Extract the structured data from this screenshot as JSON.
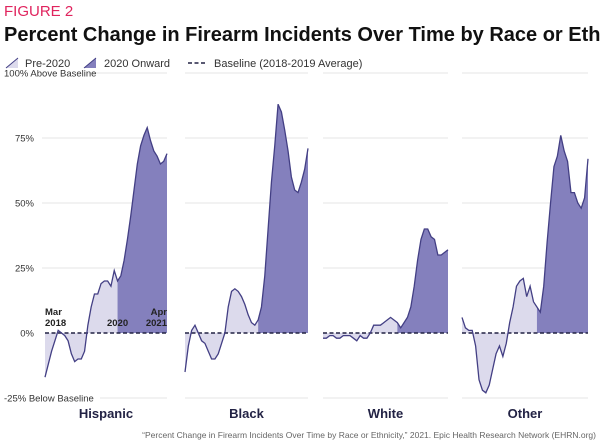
{
  "figure_label": "FIGURE 2",
  "chart_data": {
    "type": "area",
    "title": "Percent Change in Firearm Incidents Over Time by Race or Ethnicity",
    "legend": [
      {
        "label": "Pre-2020",
        "color": "#dcdaec"
      },
      {
        "label": "2020 Onward",
        "color": "#8480bd"
      },
      {
        "label": "Baseline (2018-2019 Average)",
        "color": "#222244"
      }
    ],
    "ylim": [
      -25,
      100
    ],
    "yticks": [
      {
        "value": 100,
        "label": "100%",
        "note": "Above Baseline"
      },
      {
        "value": 75,
        "label": "75%"
      },
      {
        "value": 50,
        "label": "50%"
      },
      {
        "value": 25,
        "label": "25%"
      },
      {
        "value": 0,
        "label": "0%"
      },
      {
        "value": -25,
        "label": "-25%",
        "note": "Below Baseline"
      }
    ],
    "x_start": "Mar 2018",
    "x_end": "Apr 2021",
    "split_index": 22,
    "annotations": {
      "start_line1": "Mar",
      "start_line2": "2018",
      "split": "2020",
      "end_line1": "Apr",
      "end_line2": "2021"
    },
    "series": [
      {
        "name": "Hispanic",
        "values": [
          -17,
          -12,
          -7,
          -3,
          1,
          0,
          -1,
          -3,
          -8,
          -11,
          -10,
          -10,
          -7,
          3,
          10,
          15,
          15,
          19,
          20,
          20,
          18,
          24,
          20,
          22,
          28,
          36,
          45,
          55,
          65,
          72,
          76,
          79,
          74,
          70,
          68,
          65,
          66,
          69
        ]
      },
      {
        "name": "Black",
        "values": [
          -15,
          -5,
          1,
          3,
          0,
          -3,
          -4,
          -7,
          -10,
          -10,
          -8,
          -4,
          0,
          10,
          16,
          17,
          16,
          14,
          11,
          7,
          4,
          3,
          5,
          10,
          22,
          40,
          58,
          72,
          88,
          85,
          78,
          70,
          60,
          55,
          54,
          58,
          63,
          71
        ]
      },
      {
        "name": "White",
        "values": [
          -2,
          -2,
          -1,
          -1,
          -2,
          -2,
          -1,
          -1,
          -1,
          -2,
          -3,
          -1,
          -2,
          -2,
          0,
          3,
          3,
          3,
          4,
          5,
          6,
          5,
          4,
          2,
          4,
          6,
          10,
          18,
          28,
          36,
          40,
          40,
          37,
          36,
          30,
          30,
          31,
          32
        ]
      },
      {
        "name": "Other",
        "values": [
          6,
          2,
          1,
          1,
          -5,
          -18,
          -22,
          -23,
          -20,
          -14,
          -8,
          -5,
          -9,
          -4,
          4,
          10,
          18,
          20,
          21,
          14,
          18,
          12,
          10,
          8,
          18,
          35,
          50,
          64,
          68,
          76,
          70,
          66,
          54,
          54,
          50,
          48,
          52,
          67
        ]
      }
    ],
    "colors": {
      "pre": "#dcdaec",
      "post": "#8480bd",
      "line": "#433f84",
      "baseline": "#222244",
      "grid": "#e6e6e6"
    }
  },
  "source": "“Percent Change in Firearm Incidents Over Time by Race or Ethnicity,” 2021. Epic Health Research Network (EHRN.org)"
}
